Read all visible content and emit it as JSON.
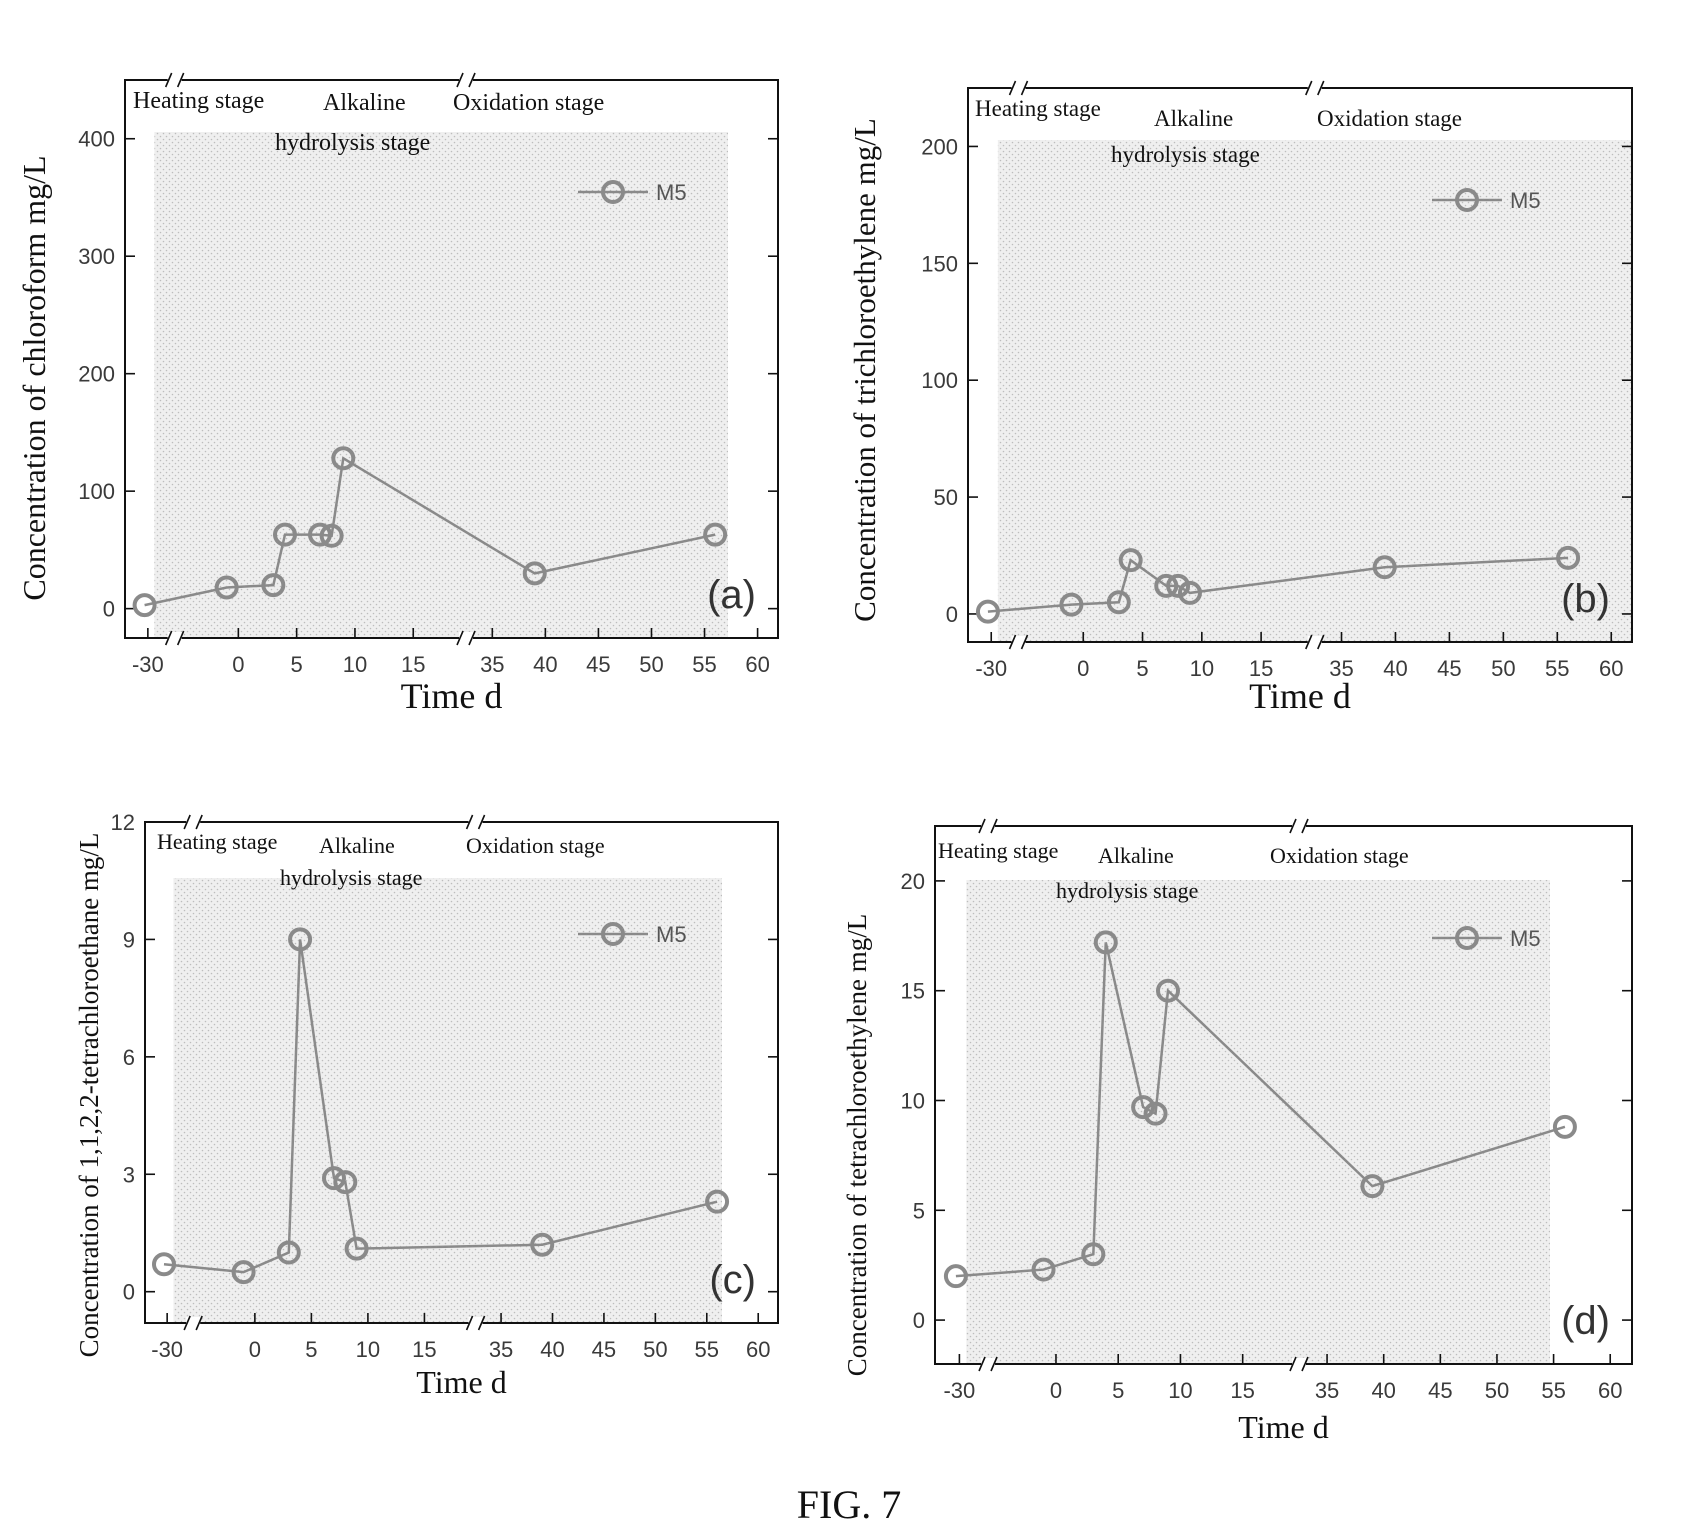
{
  "figure_caption": "FIG. 7",
  "colors": {
    "series": "#8a8a8a",
    "axis": "#111111",
    "text": "#111111",
    "shade": "#e6e6e6"
  },
  "chart_data": [
    {
      "panel_label": "(a)",
      "type": "line",
      "ylabel": "Concentration of chloroform mg/L",
      "xlabel": "Time d",
      "ylim": [
        -25,
        450
      ],
      "yticks": [
        0,
        100,
        200,
        300,
        400
      ],
      "xticks": [
        "-30",
        "0",
        "5",
        "10",
        "15",
        "35",
        "40",
        "45",
        "50",
        "55",
        "60"
      ],
      "legend": "M5",
      "legend_position": "top-right",
      "stages": [
        "Heating stage",
        "Alkaline",
        "hydrolysis stage",
        "Oxidation stage"
      ],
      "series": [
        {
          "name": "M5",
          "x": [
            "-31",
            "-1",
            "3",
            "4",
            "7",
            "8",
            "9",
            "39",
            "56"
          ],
          "y": [
            3,
            18,
            20,
            63,
            63,
            62,
            128,
            30,
            63
          ]
        }
      ]
    },
    {
      "panel_label": "(b)",
      "type": "line",
      "ylabel": "Concentration of trichloroethylene mg/L",
      "xlabel": "Time d",
      "ylim": [
        -12,
        225
      ],
      "yticks": [
        0,
        50,
        100,
        150,
        200
      ],
      "xticks": [
        "-30",
        "0",
        "5",
        "10",
        "15",
        "35",
        "40",
        "45",
        "50",
        "55",
        "60"
      ],
      "legend": "M5",
      "legend_position": "top-right",
      "stages": [
        "Heating stage",
        "Alkaline",
        "hydrolysis stage",
        "Oxidation stage"
      ],
      "series": [
        {
          "name": "M5",
          "x": [
            "-31",
            "-1",
            "3",
            "4",
            "7",
            "8",
            "9",
            "39",
            "56"
          ],
          "y": [
            1,
            4,
            5,
            23,
            12,
            12,
            9,
            20,
            24
          ]
        }
      ]
    },
    {
      "panel_label": "(c)",
      "type": "line",
      "ylabel": "Concentration of 1,1,2,2-tetrachloroethane mg/L",
      "xlabel": "Time d",
      "ylim": [
        -0.8,
        12
      ],
      "yticks": [
        0,
        3,
        6,
        9,
        12
      ],
      "xticks": [
        "-30",
        "0",
        "5",
        "10",
        "15",
        "35",
        "40",
        "45",
        "50",
        "55",
        "60"
      ],
      "legend": "M5",
      "legend_position": "top-right",
      "stages": [
        "Heating stage",
        "Alkaline",
        "hydrolysis stage",
        "Oxidation stage"
      ],
      "series": [
        {
          "name": "M5",
          "x": [
            "-31",
            "-1",
            "3",
            "4",
            "7",
            "8",
            "9",
            "39",
            "56"
          ],
          "y": [
            0.7,
            0.5,
            1.0,
            9.0,
            2.9,
            2.8,
            1.1,
            1.2,
            2.3
          ]
        }
      ]
    },
    {
      "panel_label": "(d)",
      "type": "line",
      "ylabel": "Concentration of tetrachloroethylene mg/L",
      "xlabel": "Time d",
      "ylim": [
        -2,
        22.5
      ],
      "yticks": [
        0,
        5,
        10,
        15,
        20
      ],
      "xticks": [
        "-30",
        "0",
        "5",
        "10",
        "15",
        "35",
        "40",
        "45",
        "50",
        "55",
        "60"
      ],
      "legend": "M5",
      "legend_position": "top-right",
      "stages": [
        "Heating stage",
        "Alkaline",
        "hydrolysis stage",
        "Oxidation stage"
      ],
      "series": [
        {
          "name": "M5",
          "x": [
            "-31",
            "-1",
            "3",
            "4",
            "7",
            "8",
            "9",
            "39",
            "56"
          ],
          "y": [
            2.0,
            2.3,
            3.0,
            17.2,
            9.7,
            9.4,
            15.0,
            6.1,
            8.8
          ]
        }
      ]
    }
  ]
}
